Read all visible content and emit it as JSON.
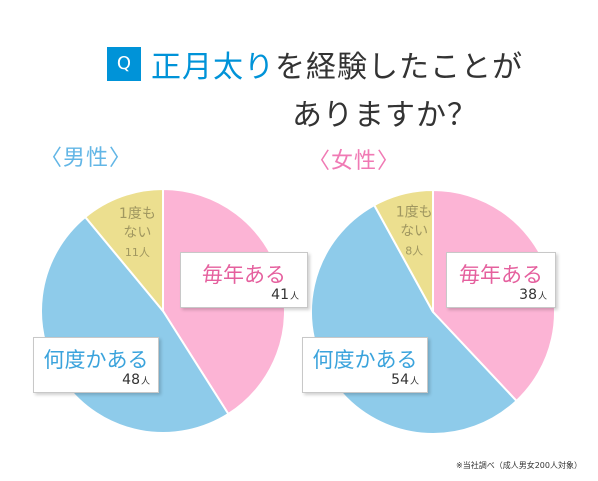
{
  "title": {
    "badge": "Q",
    "highlight": "正月太り",
    "line1_rest": "を経験したことが",
    "line2": "ありますか？"
  },
  "colors": {
    "accent": "#0093d8",
    "male_label": "#62b6e6",
    "female_label": "#f07ab4",
    "every_year": "#fcb4d5",
    "have_experienced": "#8ecbea",
    "never": "#ecdf8f"
  },
  "unit": "人",
  "footnote": "※当社調べ（成人男女200人対象）",
  "chart_data": [
    {
      "type": "pie",
      "group_label": "〈男性〉",
      "slices": [
        {
          "name": "毎年ある",
          "value": 41,
          "color": "#fcb4d5"
        },
        {
          "name": "何度かある",
          "value": 48,
          "color": "#8ecbea"
        },
        {
          "name_lines": [
            "1度も",
            "ない"
          ],
          "value": 11,
          "color": "#ecdf8f"
        }
      ],
      "total": 100
    },
    {
      "type": "pie",
      "group_label": "〈女性〉",
      "slices": [
        {
          "name": "毎年ある",
          "value": 38,
          "color": "#fcb4d5"
        },
        {
          "name": "何度かある",
          "value": 54,
          "color": "#8ecbea"
        },
        {
          "name_lines": [
            "1度も",
            "ない"
          ],
          "value": 8,
          "color": "#ecdf8f"
        }
      ],
      "total": 100
    }
  ]
}
